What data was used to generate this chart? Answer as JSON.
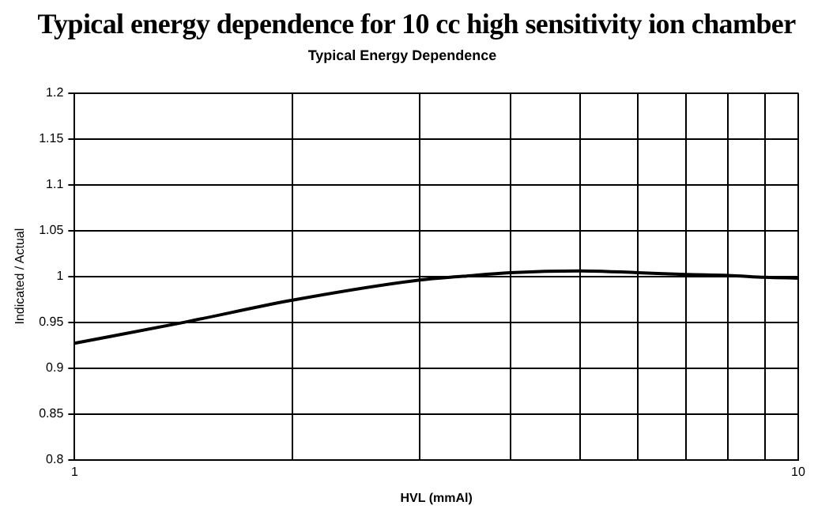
{
  "chart_data": {
    "type": "line",
    "title": "Typical energy dependence for 10 cc high sensitivity ion chamber",
    "subtitle": "Typical Energy Dependence",
    "xlabel": "HVL (mmAl)",
    "ylabel": "Indicated / Actual",
    "x": [
      1,
      1.42,
      2,
      3,
      3.44,
      4,
      5,
      6,
      7,
      8,
      9,
      10
    ],
    "series": [
      {
        "color": "#000000",
        "values": [
          0.927,
          0.95,
          0.974,
          0.996,
          1.0,
          1.004,
          1.006,
          1.004,
          1.002,
          1.001,
          0.999,
          0.998
        ]
      }
    ],
    "log": "x",
    "xlim": [
      1,
      10
    ],
    "xticks": [
      1,
      {
        "value": 2,
        "label": null
      },
      {
        "value": 3,
        "label": null
      },
      {
        "value": 4,
        "label": null
      },
      {
        "value": 5,
        "label": null
      },
      {
        "value": 6,
        "label": null
      },
      {
        "value": 7,
        "label": null
      },
      {
        "value": 8,
        "label": null
      },
      {
        "value": 9,
        "label": null
      },
      10
    ],
    "ylim": [
      0.8,
      1.2
    ],
    "yticks": [
      0.8,
      0.85,
      0.9,
      0.95,
      1,
      1.05,
      1.1,
      1.15,
      1.2
    ],
    "grid": true,
    "legend": false,
    "marker": "none",
    "line_style": "solid"
  }
}
